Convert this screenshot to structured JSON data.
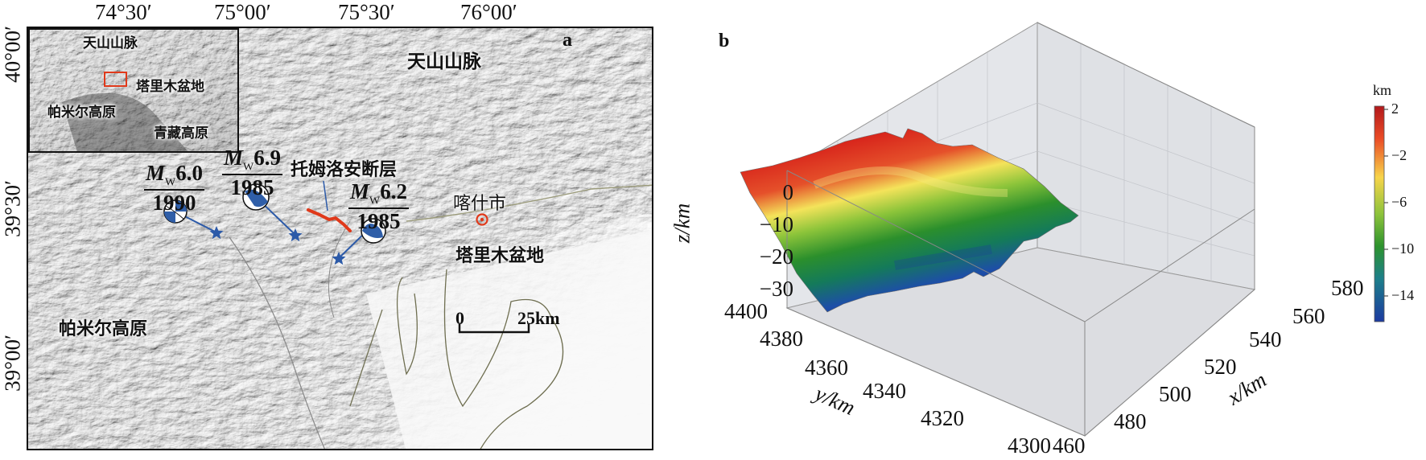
{
  "panel_a": {
    "letter": "a",
    "top_ticks": [
      "74°30′",
      "75°00′",
      "75°30′",
      "76°00′"
    ],
    "left_ticks": [
      "40°00′",
      "39°30′",
      "39°00′"
    ],
    "inset": {
      "tianshan": "天山山脉",
      "tarim": "塔里木盆地",
      "pamir": "帕米尔高原",
      "tibet": "青藏高原"
    },
    "labels": {
      "tianshan": "天山山脉",
      "fault": "托姆洛安断层",
      "kashgar": "喀什市",
      "tarim": "塔里木盆地",
      "pamir": "帕米尔高原"
    },
    "events": [
      {
        "mag_prefix": "M",
        "mag_sub": "W",
        "mag": "6.0",
        "year": "1990"
      },
      {
        "mag_prefix": "M",
        "mag_sub": "W",
        "mag": "6.9",
        "year": "1985"
      },
      {
        "mag_prefix": "M",
        "mag_sub": "W",
        "mag": "6.2",
        "year": "1985"
      }
    ],
    "scalebar": {
      "start": "0",
      "end": "25km"
    },
    "colors": {
      "fault": "#e0391a",
      "stars": "#2c5aa8",
      "beachball": "#2f5ea8"
    }
  },
  "panel_b": {
    "letter": "b",
    "z_label": "z/km",
    "y_label": "y/km",
    "x_label": "x/km",
    "z_ticks": [
      "0",
      "−10",
      "−20",
      "−30"
    ],
    "y_ticks": [
      "4400",
      "4380",
      "4360",
      "4340",
      "4320",
      "4300"
    ],
    "x_ticks": [
      "460",
      "480",
      "500",
      "520",
      "540",
      "560",
      "580"
    ],
    "colorbar": {
      "unit": "km",
      "ticks": [
        "2",
        "−2",
        "−6",
        "−10",
        "−14"
      ],
      "range": [
        -16,
        3
      ]
    }
  }
}
